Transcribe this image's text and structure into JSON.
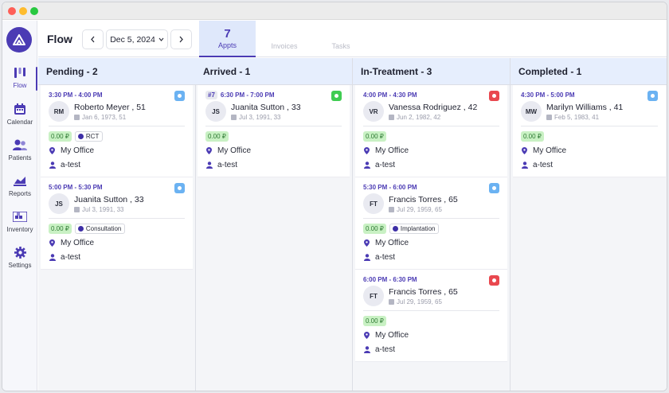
{
  "app": {
    "page_title": "Flow",
    "date": "Dec 5, 2024",
    "colors": {
      "accent": "#4b3bb4",
      "amount_bg": "#c9f1c4",
      "status_blue": "#6bb2f2",
      "status_green": "#3fcc52",
      "status_red": "#e9484f"
    }
  },
  "sidebar": {
    "items": [
      {
        "label": "Flow",
        "icon": "flow-icon"
      },
      {
        "label": "Calendar",
        "icon": "calendar-icon"
      },
      {
        "label": "Patients",
        "icon": "patients-icon"
      },
      {
        "label": "Reports",
        "icon": "reports-icon"
      },
      {
        "label": "Inventory",
        "icon": "inventory-icon"
      },
      {
        "label": "Settings",
        "icon": "settings-icon"
      }
    ]
  },
  "tabs": [
    {
      "count": "7",
      "label": "Appts"
    },
    {
      "count": "",
      "label": "Invoices"
    },
    {
      "count": "",
      "label": "Tasks"
    }
  ],
  "columns": [
    {
      "title": "Pending - 2",
      "cards": [
        {
          "time": "3:30 PM - 4:00 PM",
          "seq": "",
          "status": "blue",
          "initials": "RM",
          "name": "Roberto Meyer , 51",
          "dob": "Jan 6, 1973, 51",
          "amount": "0.00 ₽",
          "procedure": "RCT",
          "location": "My Office",
          "user": "a-test"
        },
        {
          "time": "5:00 PM - 5:30 PM",
          "seq": "",
          "status": "blue",
          "initials": "JS",
          "name": "Juanita Sutton , 33",
          "dob": "Jul 3, 1991, 33",
          "amount": "0.00 ₽",
          "procedure": "Consultation",
          "location": "My Office",
          "user": "a-test"
        }
      ]
    },
    {
      "title": "Arrived - 1",
      "cards": [
        {
          "time": "6:30 PM - 7:00 PM",
          "seq": "#7",
          "status": "green",
          "initials": "JS",
          "name": "Juanita Sutton , 33",
          "dob": "Jul 3, 1991, 33",
          "amount": "0.00 ₽",
          "procedure": "",
          "location": "My Office",
          "user": "a-test"
        }
      ]
    },
    {
      "title": "In-Treatment - 3",
      "cards": [
        {
          "time": "4:00 PM - 4:30 PM",
          "seq": "",
          "status": "red",
          "initials": "VR",
          "name": "Vanessa Rodriguez , 42",
          "dob": "Jun 2, 1982, 42",
          "amount": "0.00 ₽",
          "procedure": "",
          "location": "My Office",
          "user": "a-test"
        },
        {
          "time": "5:30 PM - 6:00 PM",
          "seq": "",
          "status": "blue",
          "initials": "FT",
          "name": "Francis Torres , 65",
          "dob": "Jul 29, 1959, 65",
          "amount": "0.00 ₽",
          "procedure": "Implantation",
          "location": "My Office",
          "user": "a-test"
        },
        {
          "time": "6:00 PM - 6:30 PM",
          "seq": "",
          "status": "red",
          "initials": "FT",
          "name": "Francis Torres , 65",
          "dob": "Jul 29, 1959, 65",
          "amount": "0.00 ₽",
          "procedure": "",
          "location": "My Office",
          "user": "a-test"
        }
      ]
    },
    {
      "title": "Completed - 1",
      "cards": [
        {
          "time": "4:30 PM - 5:00 PM",
          "seq": "",
          "status": "blue",
          "initials": "MW",
          "name": "Marilyn Williams , 41",
          "dob": "Feb 5, 1983, 41",
          "amount": "0.00 ₽",
          "procedure": "",
          "location": "My Office",
          "user": "a-test"
        }
      ]
    }
  ]
}
